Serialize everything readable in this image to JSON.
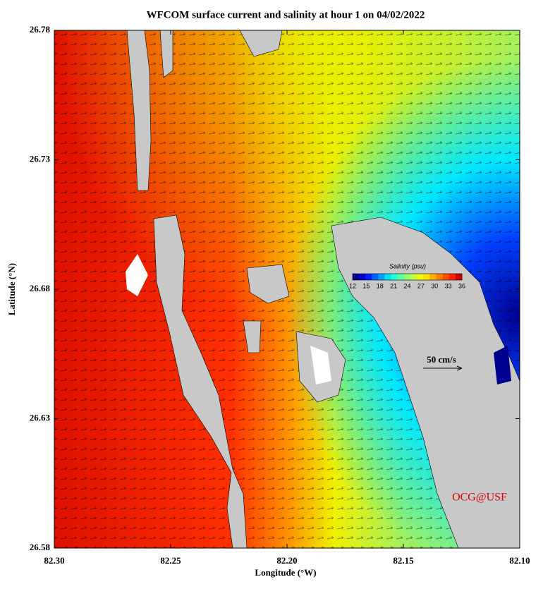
{
  "chart_data": {
    "type": "map",
    "title": "WFCOM surface current and salinity at hour 1 on 04/02/2022",
    "x_label": "Longitude (°W)",
    "y_label": "Latitude (°N)",
    "xlim": [
      82.3,
      82.1
    ],
    "ylim": [
      26.58,
      26.78
    ],
    "xticks": [
      {
        "value": 82.3,
        "label": "82.30"
      },
      82.25,
      {
        "value": 82.2,
        "label": "82.20"
      },
      82.15,
      {
        "value": 82.1,
        "label": "82.10"
      }
    ],
    "yticks": [
      26.58,
      26.63,
      26.68,
      26.73,
      26.78
    ],
    "colorbar": {
      "title": "Salinity (psu)",
      "lim": [
        12,
        36
      ],
      "ticks": [
        12,
        15,
        18,
        21,
        24,
        27,
        30,
        33,
        36
      ],
      "colors": [
        "#00008b",
        "#0000cd",
        "#0020ff",
        "#0060ff",
        "#00a0ff",
        "#00e0ff",
        "#20ffe0",
        "#60ffa0",
        "#90ff70",
        "#c0ff40",
        "#e8ff10",
        "#ffe000",
        "#ffb000",
        "#ff8000",
        "#ff5000",
        "#ff2000",
        "#d00000"
      ]
    },
    "scale_label": "50 cm/s",
    "credit": "OCG@USF"
  }
}
